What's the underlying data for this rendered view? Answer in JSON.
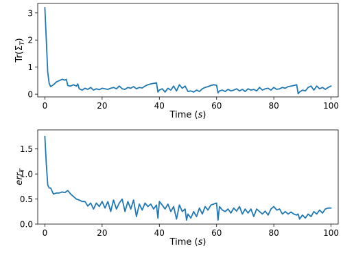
{
  "chart_data": [
    {
      "type": "line",
      "xlabel": "Time",
      "xlabel_unit": "s",
      "ylabel_base": "Tr(Σ",
      "ylabel_sub": "T",
      "ylabel_end": ")",
      "xlim": [
        -2.5,
        102.5
      ],
      "ylim": [
        -0.1,
        3.35
      ],
      "xticks": [
        0,
        20,
        40,
        60,
        80,
        100
      ],
      "yticks": [
        0,
        1,
        2,
        3
      ],
      "xtick_labels": [
        "0",
        "20",
        "40",
        "60",
        "80",
        "100"
      ],
      "ytick_labels": [
        "0",
        "1",
        "2",
        "3"
      ],
      "grid": false,
      "color": "#1f77b4",
      "series": [
        {
          "x": [
            0,
            0.5,
            1,
            1.5,
            2,
            3,
            4,
            5,
            6,
            7,
            7.5,
            8,
            9,
            10,
            11,
            11.5,
            12,
            13,
            14,
            15,
            16,
            17,
            18,
            19,
            20,
            21,
            22,
            23,
            24,
            25,
            26,
            27,
            28,
            29,
            30,
            31,
            32,
            33,
            34,
            35,
            36,
            37,
            38,
            39,
            39.5,
            40,
            41,
            42,
            43,
            44,
            45,
            46,
            47,
            48,
            49,
            50,
            51,
            52,
            53,
            54,
            55,
            56,
            57,
            58,
            59,
            60,
            60.5,
            61,
            62,
            63,
            64,
            65,
            66,
            67,
            68,
            69,
            70,
            71,
            72,
            73,
            74,
            75,
            76,
            77,
            78,
            79,
            80,
            81,
            82,
            83,
            84,
            85,
            86,
            87,
            88,
            88.5,
            89,
            90,
            91,
            92,
            93,
            94,
            95,
            96,
            97,
            98,
            99,
            100
          ],
          "y": [
            3.2,
            2.0,
            0.8,
            0.4,
            0.28,
            0.35,
            0.45,
            0.5,
            0.55,
            0.52,
            0.55,
            0.32,
            0.3,
            0.35,
            0.3,
            0.38,
            0.2,
            0.15,
            0.22,
            0.18,
            0.25,
            0.15,
            0.2,
            0.17,
            0.22,
            0.2,
            0.18,
            0.22,
            0.25,
            0.2,
            0.3,
            0.2,
            0.18,
            0.25,
            0.22,
            0.28,
            0.2,
            0.25,
            0.23,
            0.3,
            0.35,
            0.38,
            0.4,
            0.42,
            0.08,
            0.15,
            0.2,
            0.08,
            0.22,
            0.15,
            0.3,
            0.12,
            0.35,
            0.22,
            0.3,
            0.1,
            0.12,
            0.08,
            0.15,
            0.1,
            0.2,
            0.25,
            0.28,
            0.32,
            0.35,
            0.33,
            0.05,
            0.12,
            0.15,
            0.1,
            0.18,
            0.12,
            0.15,
            0.2,
            0.12,
            0.18,
            0.1,
            0.2,
            0.15,
            0.18,
            0.12,
            0.25,
            0.15,
            0.2,
            0.22,
            0.15,
            0.25,
            0.18,
            0.2,
            0.25,
            0.22,
            0.28,
            0.3,
            0.32,
            0.35,
            0.02,
            0.08,
            0.15,
            0.12,
            0.25,
            0.3,
            0.15,
            0.3,
            0.2,
            0.25,
            0.18,
            0.25,
            0.3
          ]
        }
      ]
    },
    {
      "type": "line",
      "xlabel": "Time",
      "xlabel_unit": "s",
      "ylabel_base": "err",
      "ylabel_sub": "T",
      "ylabel_end": "",
      "xlim": [
        -2.5,
        102.5
      ],
      "ylim": [
        0.0,
        1.88
      ],
      "xticks": [
        0,
        20,
        40,
        60,
        80,
        100
      ],
      "yticks": [
        0.0,
        0.5,
        1.0,
        1.5
      ],
      "xtick_labels": [
        "0",
        "20",
        "40",
        "60",
        "80",
        "100"
      ],
      "ytick_labels": [
        "0.0",
        "0.5",
        "1.0",
        "1.5"
      ],
      "grid": false,
      "color": "#1f77b4",
      "series": [
        {
          "x": [
            0,
            0.5,
            1,
            1.5,
            2,
            3,
            4,
            5,
            6,
            7,
            8,
            9,
            10,
            11,
            12,
            13,
            14,
            15,
            16,
            17,
            18,
            19,
            20,
            21,
            22,
            23,
            24,
            25,
            26,
            27,
            28,
            29,
            30,
            31,
            32,
            33,
            34,
            35,
            36,
            37,
            38,
            39,
            39.5,
            40,
            41,
            42,
            43,
            44,
            45,
            46,
            47,
            48,
            49,
            49.5,
            50,
            51,
            52,
            53,
            54,
            55,
            56,
            57,
            58,
            59,
            60,
            60.5,
            61,
            62,
            63,
            64,
            65,
            66,
            67,
            68,
            69,
            70,
            71,
            72,
            73,
            74,
            75,
            76,
            77,
            78,
            79,
            80,
            81,
            82,
            83,
            84,
            85,
            86,
            87,
            88,
            88.5,
            89,
            90,
            91,
            92,
            93,
            94,
            95,
            96,
            97,
            98,
            99,
            100
          ],
          "y": [
            1.75,
            1.2,
            0.78,
            0.72,
            0.72,
            0.6,
            0.62,
            0.62,
            0.64,
            0.63,
            0.67,
            0.6,
            0.55,
            0.5,
            0.48,
            0.45,
            0.45,
            0.36,
            0.42,
            0.3,
            0.42,
            0.35,
            0.45,
            0.32,
            0.45,
            0.25,
            0.48,
            0.3,
            0.42,
            0.5,
            0.25,
            0.45,
            0.3,
            0.48,
            0.15,
            0.4,
            0.28,
            0.42,
            0.35,
            0.4,
            0.3,
            0.38,
            0.12,
            0.45,
            0.38,
            0.3,
            0.4,
            0.25,
            0.35,
            0.1,
            0.38,
            0.25,
            0.3,
            0.08,
            0.2,
            0.12,
            0.25,
            0.15,
            0.32,
            0.2,
            0.35,
            0.28,
            0.38,
            0.4,
            0.42,
            0.08,
            0.35,
            0.28,
            0.25,
            0.3,
            0.22,
            0.32,
            0.26,
            0.35,
            0.2,
            0.3,
            0.22,
            0.3,
            0.15,
            0.3,
            0.25,
            0.2,
            0.26,
            0.18,
            0.3,
            0.35,
            0.28,
            0.3,
            0.2,
            0.25,
            0.2,
            0.24,
            0.2,
            0.18,
            0.2,
            0.1,
            0.18,
            0.12,
            0.2,
            0.15,
            0.25,
            0.2,
            0.28,
            0.22,
            0.3,
            0.32,
            0.32
          ]
        }
      ]
    }
  ]
}
